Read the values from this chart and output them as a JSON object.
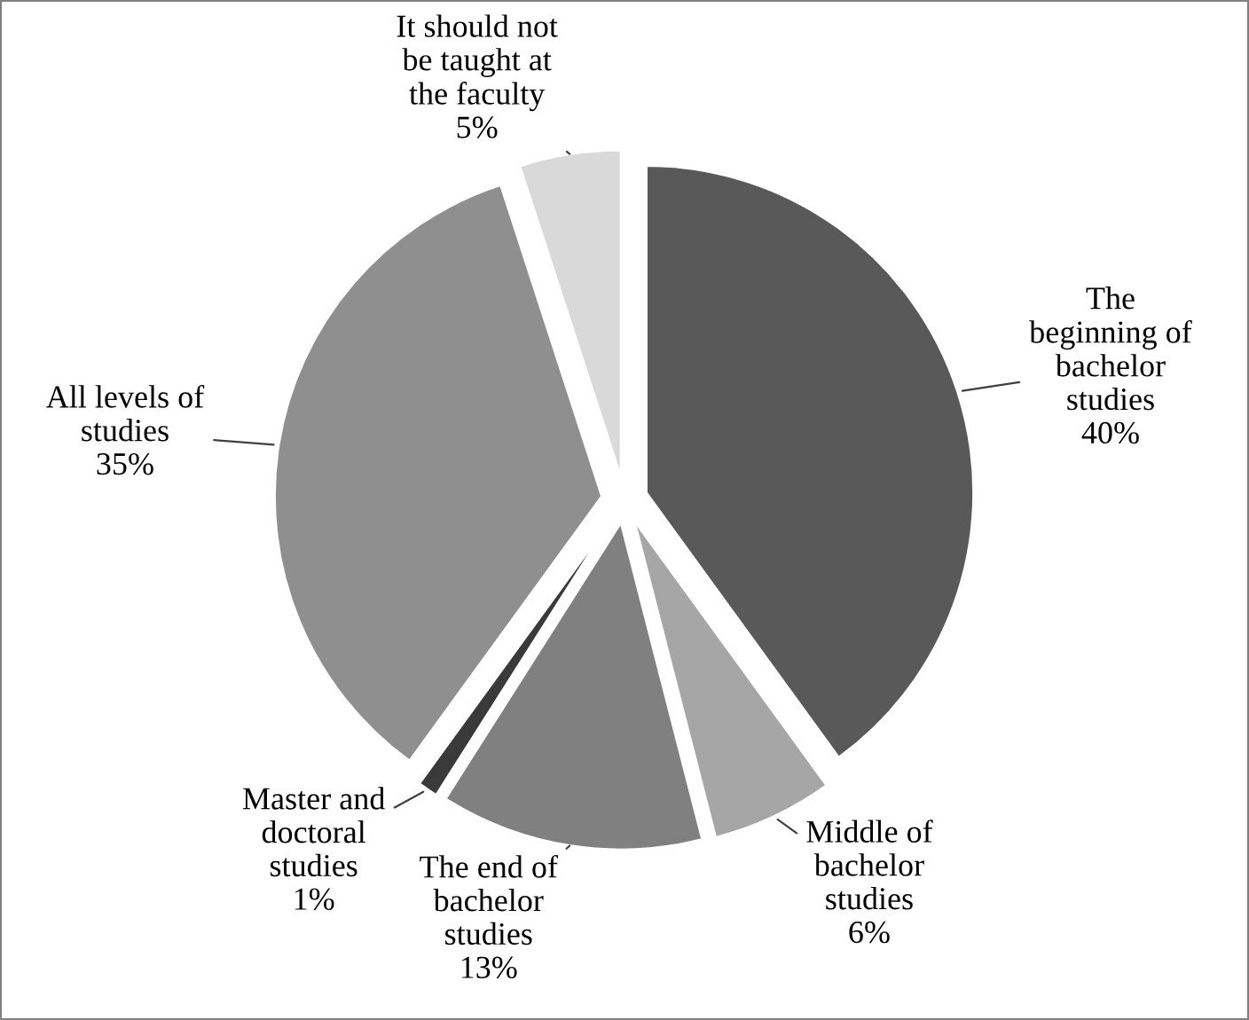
{
  "chart_data": {
    "type": "pie",
    "categories": [
      "The\nbeginning of\nbachelor\nstudies",
      "Middle of\nbachelor\nstudies",
      "The end of\nbachelor\nstudies",
      "Master and\ndoctoral\nstudies",
      "All levels of\nstudies",
      "It should not\nbe taught at\nthe faculty"
    ],
    "values": [
      40,
      6,
      13,
      1,
      35,
      5
    ],
    "colors": [
      "#595959",
      "#a6a6a6",
      "#808080",
      "#3a3a3a",
      "#8f8f8f",
      "#d9d9d9"
    ],
    "value_labels": [
      "40%",
      "6%",
      "13%",
      "1%",
      "35%",
      "5%"
    ]
  }
}
